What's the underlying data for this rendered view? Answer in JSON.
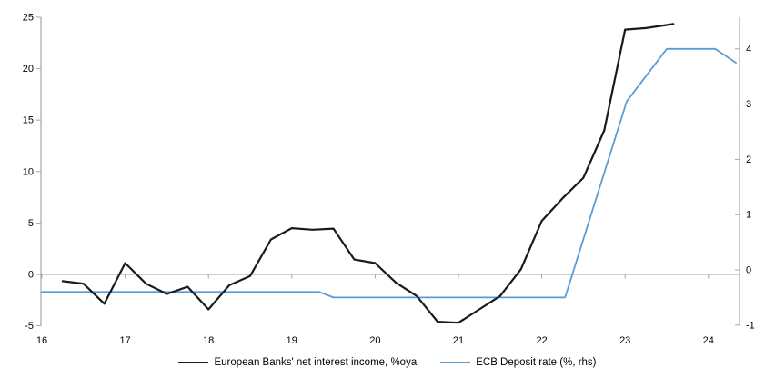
{
  "page": {
    "background": "#ffffff"
  },
  "chart_data": {
    "type": "line",
    "title": "",
    "grid": "zero-line-only",
    "legend_position": "bottom",
    "x_axis": {
      "ticks": [
        16,
        17,
        18,
        19,
        20,
        21,
        22,
        23,
        24
      ],
      "range": [
        16,
        24.4
      ]
    },
    "left_axis": {
      "ticks": [
        25,
        20,
        15,
        10,
        5,
        0,
        -5
      ],
      "range": [
        -5,
        25
      ]
    },
    "right_axis": {
      "ticks": [
        4,
        3,
        2,
        1,
        0,
        -1
      ],
      "range": [
        -1,
        4.56
      ]
    },
    "series": [
      {
        "name": "European Banks' net interest income, %oya",
        "axis": "left",
        "color": "#1a1a1a",
        "points": [
          [
            16.25,
            -0.65
          ],
          [
            16.5,
            -0.9
          ],
          [
            16.75,
            -2.85
          ],
          [
            17.0,
            1.1
          ],
          [
            17.25,
            -0.9
          ],
          [
            17.5,
            -1.9
          ],
          [
            17.75,
            -1.2
          ],
          [
            18.0,
            -3.4
          ],
          [
            18.25,
            -1.05
          ],
          [
            18.5,
            -0.15
          ],
          [
            18.75,
            3.4
          ],
          [
            19.0,
            4.5
          ],
          [
            19.25,
            4.35
          ],
          [
            19.5,
            4.45
          ],
          [
            19.75,
            1.45
          ],
          [
            20.0,
            1.1
          ],
          [
            20.25,
            -0.8
          ],
          [
            20.5,
            -2.1
          ],
          [
            20.75,
            -4.6
          ],
          [
            21.0,
            -4.7
          ],
          [
            21.25,
            -3.4
          ],
          [
            21.5,
            -2.1
          ],
          [
            21.75,
            0.5
          ],
          [
            22.0,
            5.2
          ],
          [
            22.25,
            7.4
          ],
          [
            22.5,
            9.4
          ],
          [
            22.75,
            14.0
          ],
          [
            23.0,
            23.8
          ],
          [
            23.25,
            23.95
          ],
          [
            23.58,
            24.35
          ]
        ]
      },
      {
        "name": "ECB Deposit rate (%, rhs)",
        "axis": "right",
        "color": "#5b9bd5",
        "points": [
          [
            16.0,
            -0.4
          ],
          [
            19.33,
            -0.4
          ],
          [
            19.5,
            -0.5
          ],
          [
            22.28,
            -0.5
          ],
          [
            23.02,
            3.05
          ],
          [
            23.5,
            4.0
          ],
          [
            24.08,
            4.0
          ],
          [
            24.33,
            3.75
          ]
        ]
      }
    ]
  }
}
